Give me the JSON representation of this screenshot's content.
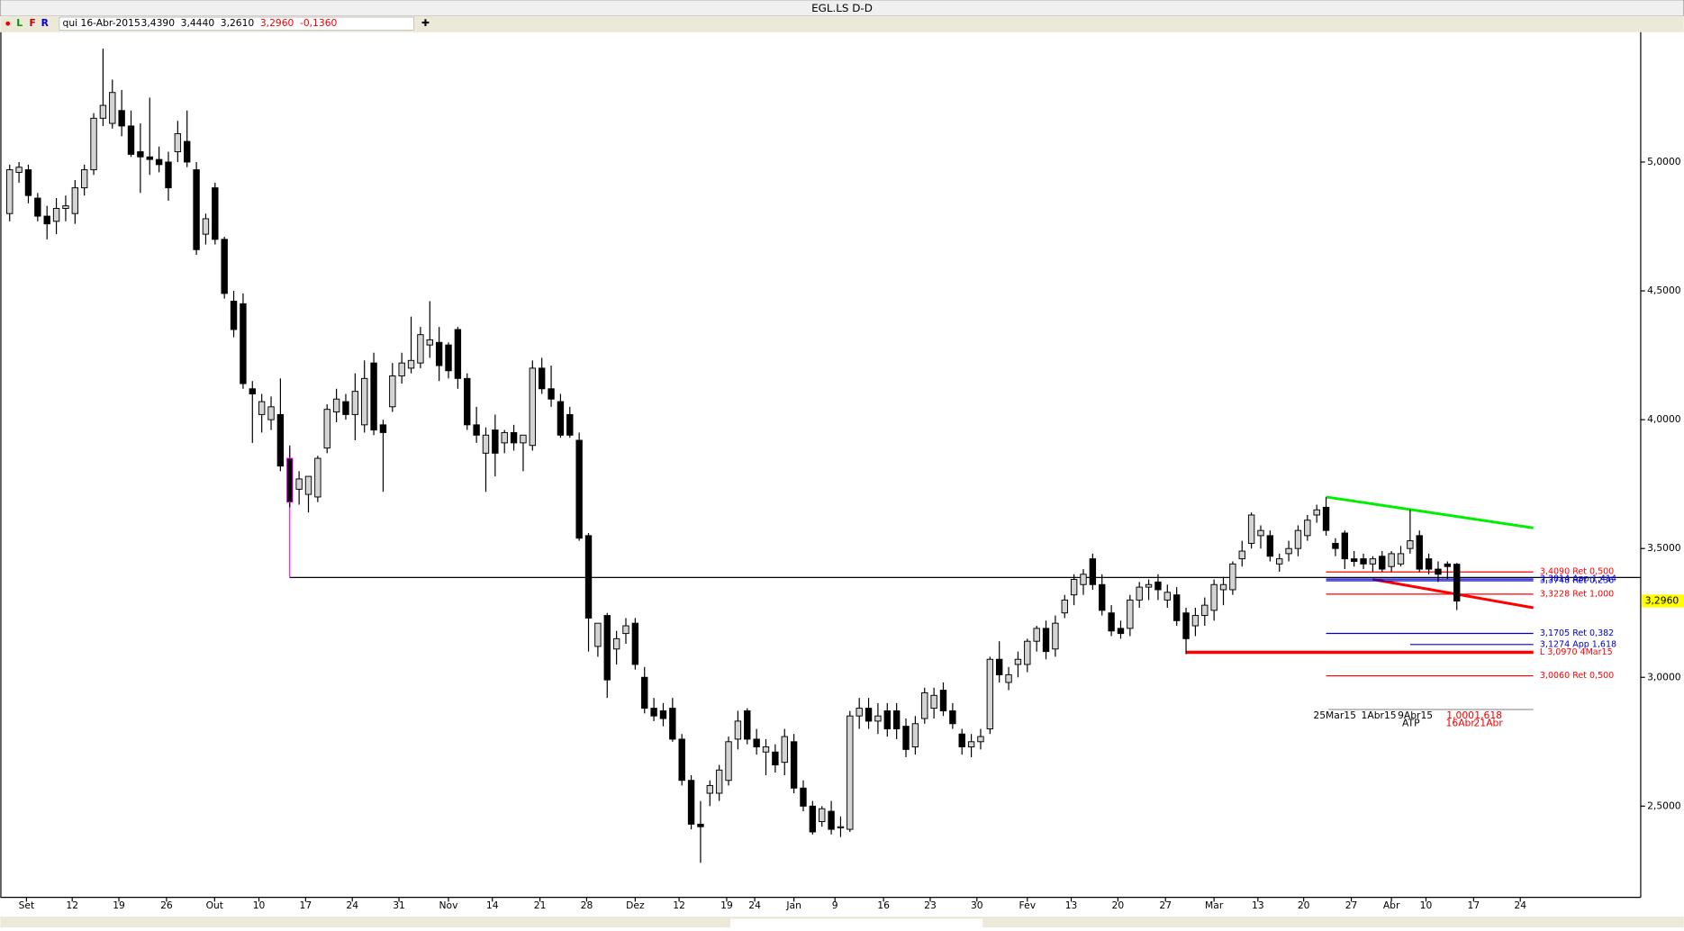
{
  "window_title": "EGL.LS D-D",
  "toolbar": {
    "buttons": [
      "L",
      "F",
      "R"
    ],
    "date": "qui 16-Abr-2015",
    "open": "3,4390",
    "high": "3,4440",
    "low": "3,2610",
    "close": "3,2960",
    "change": "-0,1360",
    "add": "✚"
  },
  "chart_data": {
    "type": "candlestick",
    "up_color": "#d4d4d4",
    "down_color": "#000000",
    "xlim": [
      -1,
      174.7
    ],
    "ylim": [
      2.146,
      5.504
    ],
    "yticks": [
      {
        "value": 2.5,
        "label": "2,5000"
      },
      {
        "value": 3,
        "label": "3,0000"
      },
      {
        "value": 3.5,
        "label": "3,5000"
      },
      {
        "value": 4,
        "label": "4,0000"
      },
      {
        "value": 4.5,
        "label": "4,5000"
      },
      {
        "value": 5,
        "label": "5,0000"
      }
    ],
    "xticks": [
      {
        "value": 1.8,
        "label": "Set"
      },
      {
        "value": 6.7,
        "label": "12"
      },
      {
        "value": 11.7,
        "label": "19"
      },
      {
        "value": 16.8,
        "label": "26"
      },
      {
        "value": 21.95,
        "label": "Out"
      },
      {
        "value": 26.7,
        "label": "10"
      },
      {
        "value": 31.7,
        "label": "17"
      },
      {
        "value": 36.7,
        "label": "24"
      },
      {
        "value": 41.7,
        "label": "31"
      },
      {
        "value": 47,
        "label": "Nov"
      },
      {
        "value": 51.7,
        "label": "14"
      },
      {
        "value": 56.8,
        "label": "21"
      },
      {
        "value": 61.8,
        "label": "28"
      },
      {
        "value": 67,
        "label": "Dez"
      },
      {
        "value": 71.7,
        "label": "12"
      },
      {
        "value": 76.8,
        "label": "19"
      },
      {
        "value": 79.8,
        "label": "24"
      },
      {
        "value": 84,
        "label": "Jan"
      },
      {
        "value": 88.4,
        "label": "9"
      },
      {
        "value": 93.6,
        "label": "16"
      },
      {
        "value": 98.6,
        "label": "23"
      },
      {
        "value": 103.6,
        "label": "30"
      },
      {
        "value": 109,
        "label": "Fev"
      },
      {
        "value": 113.7,
        "label": "13"
      },
      {
        "value": 118.7,
        "label": "20"
      },
      {
        "value": 123.8,
        "label": "27"
      },
      {
        "value": 129,
        "label": "Mar"
      },
      {
        "value": 133.7,
        "label": "13"
      },
      {
        "value": 138.6,
        "label": "20"
      },
      {
        "value": 143.7,
        "label": "27"
      },
      {
        "value": 148,
        "label": "Abr"
      },
      {
        "value": 151.7,
        "label": "10"
      },
      {
        "value": 156.8,
        "label": "17"
      },
      {
        "value": 161.8,
        "label": "24"
      }
    ],
    "candles": [
      [
        4.8,
        4.99,
        4.77,
        4.97
      ],
      [
        4.96,
        5.0,
        4.92,
        4.98
      ],
      [
        4.97,
        4.99,
        4.84,
        4.87
      ],
      [
        4.86,
        4.88,
        4.77,
        4.79
      ],
      [
        4.79,
        4.83,
        4.7,
        4.76
      ],
      [
        4.77,
        4.86,
        4.72,
        4.82
      ],
      [
        4.82,
        4.87,
        4.77,
        4.83
      ],
      [
        4.8,
        4.93,
        4.76,
        4.9
      ],
      [
        4.9,
        4.99,
        4.87,
        4.97
      ],
      [
        4.97,
        5.19,
        4.95,
        5.17
      ],
      [
        5.17,
        5.44,
        5.14,
        5.22
      ],
      [
        5.15,
        5.32,
        5.13,
        5.27
      ],
      [
        5.2,
        5.28,
        5.1,
        5.14
      ],
      [
        5.14,
        5.2,
        5.02,
        5.03
      ],
      [
        5.04,
        5.15,
        4.88,
        5.02
      ],
      [
        5.02,
        5.25,
        4.95,
        5.01
      ],
      [
        5.01,
        5.06,
        4.96,
        4.99
      ],
      [
        5.0,
        5.04,
        4.85,
        4.9
      ],
      [
        5.04,
        5.16,
        5.0,
        5.11
      ],
      [
        5.08,
        5.2,
        4.98,
        5.0
      ],
      [
        4.97,
        5.0,
        4.64,
        4.66
      ],
      [
        4.72,
        4.8,
        4.68,
        4.78
      ],
      [
        4.9,
        4.92,
        4.68,
        4.7
      ],
      [
        4.7,
        4.71,
        4.47,
        4.49
      ],
      [
        4.46,
        4.5,
        4.32,
        4.35
      ],
      [
        4.45,
        4.49,
        4.12,
        4.14
      ],
      [
        4.12,
        4.15,
        3.91,
        4.1
      ],
      [
        4.02,
        4.1,
        3.95,
        4.07
      ],
      [
        4.0,
        4.09,
        3.96,
        4.05
      ],
      [
        4.02,
        4.16,
        3.8,
        3.82
      ],
      [
        3.85,
        3.9,
        3.66,
        3.68
      ],
      [
        3.73,
        3.8,
        3.67,
        3.77
      ],
      [
        3.71,
        3.78,
        3.64,
        3.78
      ],
      [
        3.7,
        3.86,
        3.68,
        3.85
      ],
      [
        3.89,
        4.06,
        3.87,
        4.04
      ],
      [
        4.03,
        4.12,
        3.99,
        4.08
      ],
      [
        4.07,
        4.1,
        4.0,
        4.02
      ],
      [
        4.02,
        4.18,
        3.92,
        4.11
      ],
      [
        3.98,
        4.23,
        3.95,
        4.16
      ],
      [
        4.22,
        4.26,
        3.94,
        3.96
      ],
      [
        3.98,
        4.0,
        3.72,
        3.95
      ],
      [
        4.05,
        4.22,
        4.03,
        4.17
      ],
      [
        4.17,
        4.26,
        4.14,
        4.22
      ],
      [
        4.2,
        4.4,
        4.18,
        4.23
      ],
      [
        4.22,
        4.36,
        4.2,
        4.33
      ],
      [
        4.29,
        4.46,
        4.24,
        4.31
      ],
      [
        4.3,
        4.36,
        4.15,
        4.21
      ],
      [
        4.29,
        4.3,
        4.16,
        4.19
      ],
      [
        4.35,
        4.36,
        4.12,
        4.16
      ],
      [
        4.16,
        4.18,
        3.96,
        3.98
      ],
      [
        3.98,
        4.05,
        3.91,
        3.94
      ],
      [
        3.87,
        3.97,
        3.72,
        3.94
      ],
      [
        3.96,
        4.02,
        3.78,
        3.87
      ],
      [
        3.91,
        3.96,
        3.87,
        3.95
      ],
      [
        3.95,
        3.98,
        3.88,
        3.91
      ],
      [
        3.91,
        3.94,
        3.8,
        3.94
      ],
      [
        3.9,
        4.23,
        3.88,
        4.2
      ],
      [
        4.2,
        4.24,
        4.1,
        4.12
      ],
      [
        4.12,
        4.21,
        4.05,
        4.08
      ],
      [
        4.07,
        4.1,
        3.93,
        3.94
      ],
      [
        4.02,
        4.05,
        3.93,
        3.94
      ],
      [
        3.92,
        3.95,
        3.53,
        3.54
      ],
      [
        3.55,
        3.56,
        3.1,
        3.23
      ],
      [
        3.12,
        3.21,
        3.08,
        3.21
      ],
      [
        3.24,
        3.25,
        2.92,
        2.99
      ],
      [
        3.11,
        3.18,
        3.05,
        3.15
      ],
      [
        3.17,
        3.23,
        3.13,
        3.2
      ],
      [
        3.21,
        3.23,
        3.03,
        3.05
      ],
      [
        3.0,
        3.04,
        2.86,
        2.88
      ],
      [
        2.88,
        2.92,
        2.83,
        2.85
      ],
      [
        2.87,
        2.9,
        2.81,
        2.84
      ],
      [
        2.88,
        2.92,
        2.75,
        2.76
      ],
      [
        2.76,
        2.78,
        2.58,
        2.6
      ],
      [
        2.6,
        2.62,
        2.41,
        2.43
      ],
      [
        2.43,
        2.52,
        2.28,
        2.42
      ],
      [
        2.55,
        2.6,
        2.5,
        2.58
      ],
      [
        2.55,
        2.66,
        2.52,
        2.64
      ],
      [
        2.6,
        2.77,
        2.58,
        2.75
      ],
      [
        2.76,
        2.87,
        2.72,
        2.83
      ],
      [
        2.87,
        2.88,
        2.74,
        2.76
      ],
      [
        2.76,
        2.8,
        2.7,
        2.73
      ],
      [
        2.71,
        2.76,
        2.62,
        2.73
      ],
      [
        2.71,
        2.74,
        2.63,
        2.66
      ],
      [
        2.67,
        2.8,
        2.62,
        2.77
      ],
      [
        2.75,
        2.78,
        2.55,
        2.57
      ],
      [
        2.57,
        2.6,
        2.48,
        2.5
      ],
      [
        2.5,
        2.52,
        2.39,
        2.4
      ],
      [
        2.44,
        2.5,
        2.42,
        2.49
      ],
      [
        2.48,
        2.52,
        2.39,
        2.41
      ],
      [
        2.42,
        2.46,
        2.38,
        2.42
      ],
      [
        2.41,
        2.87,
        2.4,
        2.85
      ],
      [
        2.85,
        2.92,
        2.8,
        2.88
      ],
      [
        2.88,
        2.92,
        2.8,
        2.83
      ],
      [
        2.83,
        2.9,
        2.78,
        2.85
      ],
      [
        2.87,
        2.9,
        2.77,
        2.8
      ],
      [
        2.87,
        2.9,
        2.76,
        2.8
      ],
      [
        2.81,
        2.84,
        2.69,
        2.72
      ],
      [
        2.73,
        2.85,
        2.7,
        2.82
      ],
      [
        2.84,
        2.96,
        2.82,
        2.94
      ],
      [
        2.88,
        2.96,
        2.84,
        2.93
      ],
      [
        2.95,
        2.98,
        2.85,
        2.87
      ],
      [
        2.87,
        2.9,
        2.8,
        2.82
      ],
      [
        2.78,
        2.8,
        2.7,
        2.73
      ],
      [
        2.73,
        2.78,
        2.69,
        2.75
      ],
      [
        2.75,
        2.8,
        2.72,
        2.77
      ],
      [
        2.8,
        3.08,
        2.78,
        3.07
      ],
      [
        3.07,
        3.14,
        2.98,
        3.01
      ],
      [
        2.98,
        3.04,
        2.95,
        3.01
      ],
      [
        3.05,
        3.1,
        3.0,
        3.07
      ],
      [
        3.05,
        3.15,
        3.02,
        3.14
      ],
      [
        3.14,
        3.2,
        3.1,
        3.19
      ],
      [
        3.19,
        3.22,
        3.07,
        3.1
      ],
      [
        3.11,
        3.24,
        3.08,
        3.21
      ],
      [
        3.25,
        3.32,
        3.23,
        3.3
      ],
      [
        3.32,
        3.4,
        3.28,
        3.38
      ],
      [
        3.36,
        3.42,
        3.32,
        3.4
      ],
      [
        3.46,
        3.48,
        3.34,
        3.36
      ],
      [
        3.36,
        3.4,
        3.24,
        3.26
      ],
      [
        3.25,
        3.28,
        3.16,
        3.18
      ],
      [
        3.19,
        3.22,
        3.15,
        3.17
      ],
      [
        3.19,
        3.32,
        3.16,
        3.3
      ],
      [
        3.3,
        3.37,
        3.27,
        3.35
      ],
      [
        3.35,
        3.38,
        3.3,
        3.36
      ],
      [
        3.37,
        3.4,
        3.3,
        3.34
      ],
      [
        3.3,
        3.36,
        3.27,
        3.33
      ],
      [
        3.32,
        3.35,
        3.2,
        3.22
      ],
      [
        3.25,
        3.27,
        3.09,
        3.15
      ],
      [
        3.2,
        3.27,
        3.16,
        3.24
      ],
      [
        3.24,
        3.31,
        3.2,
        3.28
      ],
      [
        3.26,
        3.38,
        3.22,
        3.36
      ],
      [
        3.34,
        3.39,
        3.28,
        3.36
      ],
      [
        3.34,
        3.45,
        3.32,
        3.44
      ],
      [
        3.46,
        3.53,
        3.43,
        3.49
      ],
      [
        3.52,
        3.64,
        3.5,
        3.63
      ],
      [
        3.55,
        3.59,
        3.5,
        3.57
      ],
      [
        3.55,
        3.57,
        3.45,
        3.47
      ],
      [
        3.44,
        3.48,
        3.41,
        3.46
      ],
      [
        3.48,
        3.53,
        3.45,
        3.5
      ],
      [
        3.5,
        3.59,
        3.47,
        3.57
      ],
      [
        3.55,
        3.63,
        3.53,
        3.61
      ],
      [
        3.63,
        3.67,
        3.6,
        3.65
      ],
      [
        3.66,
        3.7,
        3.55,
        3.57
      ],
      [
        3.52,
        3.54,
        3.47,
        3.5
      ],
      [
        3.56,
        3.57,
        3.42,
        3.46
      ],
      [
        3.46,
        3.49,
        3.43,
        3.45
      ],
      [
        3.46,
        3.48,
        3.42,
        3.44
      ],
      [
        3.44,
        3.47,
        3.41,
        3.46
      ],
      [
        3.47,
        3.49,
        3.41,
        3.42
      ],
      [
        3.43,
        3.49,
        3.41,
        3.48
      ],
      [
        3.44,
        3.51,
        3.43,
        3.48
      ],
      [
        3.5,
        3.65,
        3.48,
        3.53
      ],
      [
        3.55,
        3.57,
        3.41,
        3.42
      ],
      [
        3.46,
        3.48,
        3.4,
        3.42
      ],
      [
        3.42,
        3.45,
        3.37,
        3.4
      ],
      [
        3.44,
        3.45,
        3.38,
        3.43
      ],
      [
        3.439,
        3.444,
        3.261,
        3.296
      ]
    ],
    "lines": [
      {
        "color": "#000000",
        "width": 1,
        "x": [
          30,
          174.7
        ],
        "y": [
          3.3875,
          3.3875
        ]
      },
      {
        "color": "#ff00ff",
        "width": 1,
        "x": [
          30,
          30
        ],
        "y": [
          3.3875,
          3.89
        ]
      },
      {
        "color": "#00ee00",
        "width": 2.5,
        "x": [
          141,
          163.2
        ],
        "y": [
          3.7,
          3.58
        ]
      },
      {
        "color": "#ff0000",
        "width": 2.5,
        "x": [
          146,
          163.2
        ],
        "y": [
          3.38,
          3.27
        ]
      }
    ],
    "levels": [
      {
        "value": 3.409,
        "label": "3,4090 Ret 0,500",
        "color": "#ff0000",
        "width": 1,
        "x": [
          141,
          163.2
        ]
      },
      {
        "value": 3.3814,
        "label": "3,3814 App 1,414",
        "color": "#0000cc",
        "width": 1,
        "x": [
          141,
          163.2
        ]
      },
      {
        "value": 3.3748,
        "label": "3,3748 Ret 0,236",
        "color": "#0000cc",
        "width": 1,
        "x": [
          141,
          163.2
        ]
      },
      {
        "value": 3.3228,
        "label": "3,3228 Ret 1,000",
        "color": "#ff0000",
        "width": 1,
        "x": [
          141,
          163.2
        ]
      },
      {
        "value": 3.1705,
        "label": "3,1705 Ret 0,382",
        "color": "#0000cc",
        "width": 1,
        "x": [
          141,
          163.2
        ]
      },
      {
        "value": 3.1274,
        "label": "3,1274 App 1,618",
        "color": "#0000cc",
        "width": 1,
        "x": [
          150,
          163.2
        ]
      },
      {
        "value": 3.097,
        "label": "L 3,0970 4Mar15",
        "color": "#ff0000",
        "width": 3,
        "x": [
          126,
          163.2
        ]
      },
      {
        "value": 3.006,
        "label": "3,0060 Ret 0,500",
        "color": "#ff0000",
        "width": 1,
        "x": [
          141,
          163.2
        ]
      }
    ],
    "time_labels": [
      "25Mar15",
      "1Abr15",
      "9Abr15",
      "ATP",
      "1,000",
      "16Abr",
      "1,618",
      "21Abr"
    ]
  }
}
